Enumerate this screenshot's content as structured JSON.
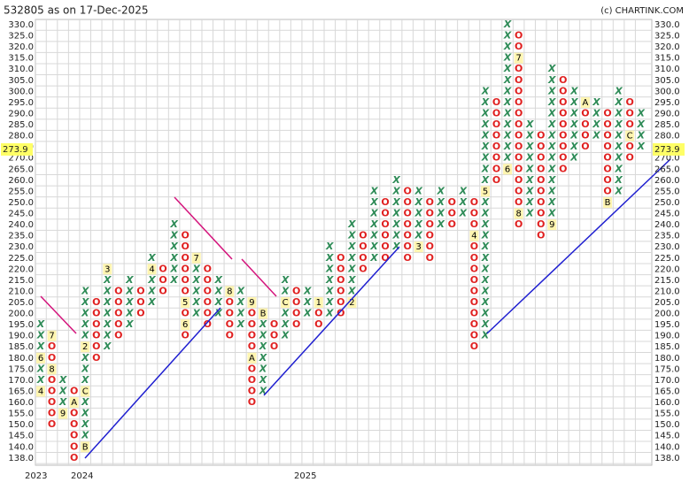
{
  "chart_data": {
    "type": "point-and-figure",
    "title": "532805 as on 17-Dec-2025",
    "credit": "(c) CHARTINK.COM",
    "current_price": 273.9,
    "years": [
      "2023",
      "2024",
      "2025"
    ],
    "yticks": [
      {
        "value": 330,
        "label": "330.0"
      },
      {
        "value": 325,
        "label": "325.0"
      },
      {
        "value": 320,
        "label": "320.0"
      },
      {
        "value": 315,
        "label": "315.0"
      },
      {
        "value": 310,
        "label": "310.0"
      },
      {
        "value": 305,
        "label": "305.0"
      },
      {
        "value": 300,
        "label": "300.0"
      },
      {
        "value": 295,
        "label": "295.0"
      },
      {
        "value": 290,
        "label": "290.0"
      },
      {
        "value": 285,
        "label": "285.0"
      },
      {
        "value": 280,
        "label": "280.0"
      },
      {
        "value": 275,
        "label": "275.0"
      },
      {
        "value": 270,
        "label": "270.0"
      },
      {
        "value": 265,
        "label": "265.0"
      },
      {
        "value": 260,
        "label": "260.0"
      },
      {
        "value": 255,
        "label": "255.0"
      },
      {
        "value": 250,
        "label": "250.0"
      },
      {
        "value": 245,
        "label": "245.0"
      },
      {
        "value": 240,
        "label": "240.0"
      },
      {
        "value": 235,
        "label": "235.0"
      },
      {
        "value": 230,
        "label": "230.0"
      },
      {
        "value": 225,
        "label": "225.0"
      },
      {
        "value": 220,
        "label": "220.0"
      },
      {
        "value": 215,
        "label": "215.0"
      },
      {
        "value": 210,
        "label": "210.0"
      },
      {
        "value": 205,
        "label": "205.0"
      },
      {
        "value": 200,
        "label": "200.0"
      },
      {
        "value": 195,
        "label": "195.0"
      },
      {
        "value": 190,
        "label": "190.0"
      },
      {
        "value": 185,
        "label": "185.0"
      },
      {
        "value": 180,
        "label": "180.0"
      },
      {
        "value": 175,
        "label": "175.0"
      },
      {
        "value": 170,
        "label": "170.0"
      },
      {
        "value": 165,
        "label": "165.0"
      },
      {
        "value": 160,
        "label": "160.0"
      },
      {
        "value": 155,
        "label": "155.0"
      },
      {
        "value": 150,
        "label": "150.0"
      },
      {
        "value": 145,
        "label": "145.0"
      },
      {
        "value": 140,
        "label": "140.0"
      },
      {
        "value": 138,
        "label": "138.0"
      }
    ],
    "columns": [
      {
        "type": "X",
        "low": 165,
        "high": 195,
        "markers": [
          {
            "value": 165,
            "label": "4"
          },
          {
            "value": 180,
            "label": "6"
          }
        ]
      },
      {
        "type": "O",
        "low": 150,
        "high": 190,
        "markers": [
          {
            "value": 190,
            "label": "7"
          },
          {
            "value": 175,
            "label": "8"
          }
        ]
      },
      {
        "type": "X",
        "low": 155,
        "high": 170,
        "markers": [
          {
            "value": 155,
            "label": "9"
          }
        ]
      },
      {
        "type": "O",
        "low": 138,
        "high": 165,
        "markers": [
          {
            "value": 160,
            "label": "A"
          }
        ]
      },
      {
        "type": "X",
        "low": 140,
        "high": 210,
        "markers": [
          {
            "value": 140,
            "label": "B"
          },
          {
            "value": 165,
            "label": "C"
          },
          {
            "value": 185,
            "label": "2"
          }
        ]
      },
      {
        "type": "O",
        "low": 180,
        "high": 205,
        "markers": []
      },
      {
        "type": "X",
        "low": 185,
        "high": 220,
        "markers": [
          {
            "value": 220,
            "label": "3"
          }
        ]
      },
      {
        "type": "O",
        "low": 190,
        "high": 210,
        "markers": []
      },
      {
        "type": "X",
        "low": 195,
        "high": 215,
        "markers": []
      },
      {
        "type": "O",
        "low": 200,
        "high": 210,
        "markers": []
      },
      {
        "type": "X",
        "low": 205,
        "high": 225,
        "markers": [
          {
            "value": 220,
            "label": "4"
          }
        ]
      },
      {
        "type": "O",
        "low": 210,
        "high": 220,
        "markers": []
      },
      {
        "type": "X",
        "low": 215,
        "high": 240,
        "markers": []
      },
      {
        "type": "O",
        "low": 190,
        "high": 235,
        "markers": [
          {
            "value": 205,
            "label": "5"
          },
          {
            "value": 195,
            "label": "6"
          }
        ]
      },
      {
        "type": "X",
        "low": 200,
        "high": 225,
        "markers": [
          {
            "value": 225,
            "label": "7"
          }
        ]
      },
      {
        "type": "O",
        "low": 195,
        "high": 220,
        "markers": []
      },
      {
        "type": "X",
        "low": 200,
        "high": 215,
        "markers": []
      },
      {
        "type": "O",
        "low": 190,
        "high": 210,
        "markers": [
          {
            "value": 210,
            "label": "8"
          }
        ]
      },
      {
        "type": "X",
        "low": 195,
        "high": 210,
        "markers": []
      },
      {
        "type": "O",
        "low": 160,
        "high": 205,
        "markers": [
          {
            "value": 205,
            "label": "9"
          },
          {
            "value": 180,
            "label": "A"
          }
        ]
      },
      {
        "type": "X",
        "low": 165,
        "high": 200,
        "markers": [
          {
            "value": 200,
            "label": "B"
          }
        ]
      },
      {
        "type": "O",
        "low": 185,
        "high": 195,
        "markers": []
      },
      {
        "type": "X",
        "low": 190,
        "high": 215,
        "markers": [
          {
            "value": 205,
            "label": "C"
          }
        ]
      },
      {
        "type": "O",
        "low": 195,
        "high": 210,
        "markers": []
      },
      {
        "type": "X",
        "low": 200,
        "high": 210,
        "markers": []
      },
      {
        "type": "O",
        "low": 195,
        "high": 205,
        "markers": [
          {
            "value": 205,
            "label": "1"
          }
        ]
      },
      {
        "type": "X",
        "low": 200,
        "high": 230,
        "markers": []
      },
      {
        "type": "O",
        "low": 200,
        "high": 225,
        "markers": []
      },
      {
        "type": "X",
        "low": 205,
        "high": 240,
        "markers": [
          {
            "value": 205,
            "label": "2"
          }
        ]
      },
      {
        "type": "O",
        "low": 220,
        "high": 235,
        "markers": []
      },
      {
        "type": "X",
        "low": 225,
        "high": 255,
        "markers": []
      },
      {
        "type": "O",
        "low": 225,
        "high": 250,
        "markers": []
      },
      {
        "type": "X",
        "low": 230,
        "high": 260,
        "markers": []
      },
      {
        "type": "O",
        "low": 225,
        "high": 255,
        "markers": []
      },
      {
        "type": "X",
        "low": 230,
        "high": 255,
        "markers": [
          {
            "value": 230,
            "label": "3"
          }
        ]
      },
      {
        "type": "O",
        "low": 225,
        "high": 250,
        "markers": []
      },
      {
        "type": "X",
        "low": 240,
        "high": 255,
        "markers": []
      },
      {
        "type": "O",
        "low": 240,
        "high": 250,
        "markers": []
      },
      {
        "type": "X",
        "low": 245,
        "high": 255,
        "markers": []
      },
      {
        "type": "O",
        "low": 185,
        "high": 250,
        "markers": [
          {
            "value": 235,
            "label": "4"
          }
        ]
      },
      {
        "type": "X",
        "low": 190,
        "high": 300,
        "markers": [
          {
            "value": 255,
            "label": "5"
          }
        ]
      },
      {
        "type": "O",
        "low": 260,
        "high": 295,
        "markers": []
      },
      {
        "type": "X",
        "low": 265,
        "high": 330,
        "markers": [
          {
            "value": 265,
            "label": "6"
          }
        ]
      },
      {
        "type": "O",
        "low": 240,
        "high": 325,
        "markers": [
          {
            "value": 315,
            "label": "7"
          },
          {
            "value": 245,
            "label": "8"
          }
        ]
      },
      {
        "type": "X",
        "low": 245,
        "high": 285,
        "markers": []
      },
      {
        "type": "O",
        "low": 235,
        "high": 280,
        "markers": []
      },
      {
        "type": "X",
        "low": 240,
        "high": 310,
        "markers": [
          {
            "value": 240,
            "label": "9"
          }
        ]
      },
      {
        "type": "O",
        "low": 265,
        "high": 305,
        "markers": []
      },
      {
        "type": "X",
        "low": 270,
        "high": 300,
        "markers": []
      },
      {
        "type": "O",
        "low": 275,
        "high": 295,
        "markers": [
          {
            "value": 295,
            "label": "A"
          }
        ]
      },
      {
        "type": "X",
        "low": 280,
        "high": 295,
        "markers": []
      },
      {
        "type": "O",
        "low": 250,
        "high": 290,
        "markers": [
          {
            "value": 250,
            "label": "B"
          }
        ]
      },
      {
        "type": "X",
        "low": 255,
        "high": 300,
        "markers": []
      },
      {
        "type": "O",
        "low": 270,
        "high": 295,
        "markers": [
          {
            "value": 280,
            "label": "C"
          }
        ]
      },
      {
        "type": "X",
        "low": 275,
        "high": 290,
        "markers": []
      }
    ]
  }
}
